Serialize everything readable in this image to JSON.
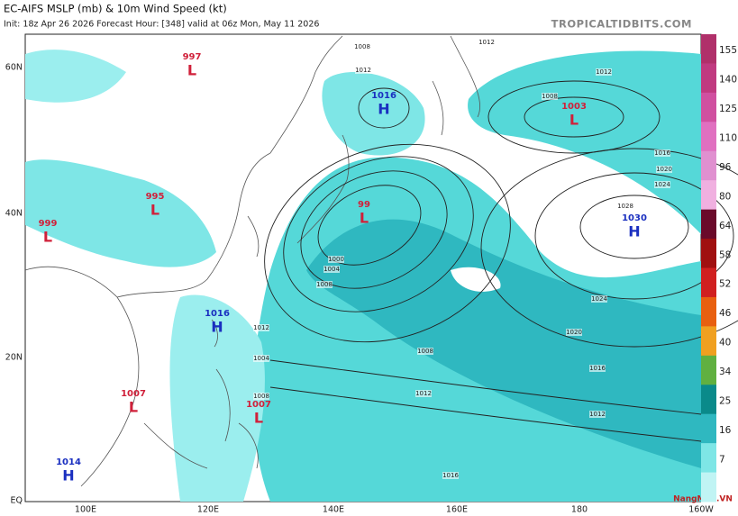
{
  "header": {
    "title": "EC-AIFS MSLP (mb) & 10m Wind Speed (kt)",
    "subtitle": "Init: 18z Apr 26 2026   Forecast Hour: [348]   valid at 06z Mon, May 11 2026",
    "site": "TROPICALTIDBITS.COM"
  },
  "lat_labels": [
    "60N",
    "40N",
    "20N",
    "EQ"
  ],
  "lon_labels": [
    "100E",
    "120E",
    "140E",
    "160E",
    "180",
    "160W"
  ],
  "colorbar": {
    "ticks": [
      155,
      140,
      125,
      110,
      96,
      80,
      64,
      58,
      52,
      46,
      40,
      34,
      25,
      16,
      7
    ]
  },
  "centers": [
    {
      "type": "L",
      "pressure": 997
    },
    {
      "type": "L",
      "pressure": 995
    },
    {
      "type": "L",
      "pressure": 999
    },
    {
      "type": "L",
      "pressure": 1007
    },
    {
      "type": "L",
      "pressure": 1007
    },
    {
      "type": "L",
      "pressure": 99
    },
    {
      "type": "L",
      "pressure": 1003
    },
    {
      "type": "H",
      "pressure": 1016
    },
    {
      "type": "H",
      "pressure": 1016
    },
    {
      "type": "H",
      "pressure": 1030
    },
    {
      "type": "H",
      "pressure": 1014
    }
  ],
  "isobar_labels": [
    1012,
    1008,
    1012,
    1012,
    1008,
    1016,
    1020,
    1024,
    1028,
    1024,
    1020,
    1016,
    1012,
    1012,
    1008,
    1004,
    1000,
    1004,
    1008,
    1012,
    1016,
    1008
  ],
  "watermark": "NangMua.VN"
}
